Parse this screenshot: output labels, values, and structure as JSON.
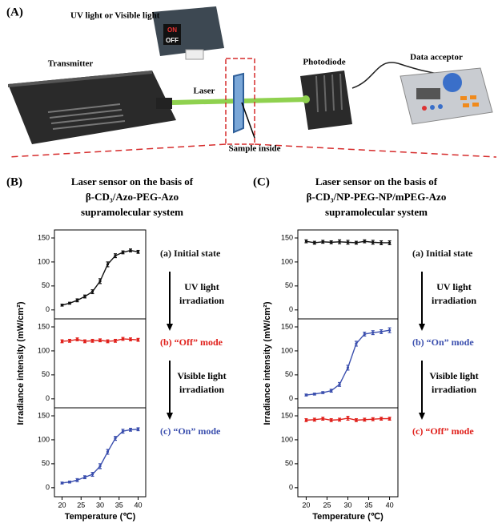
{
  "illustration": {
    "label": "(A)",
    "light_source": "UV light or Visible light",
    "on": "ON",
    "off": "OFF",
    "transmitter": "Transmitter",
    "laser": "Laser",
    "photodiode": "Photodiode",
    "data_acceptor": "Data acceptor",
    "sample": "Sample inside"
  },
  "chart_data": [
    {
      "type": "line",
      "panel": "(B)",
      "title": [
        "Laser sensor on the basis of",
        "β-CD₃/Azo-PEG-Azo",
        "supramolecular system"
      ],
      "xlabel": "Temperature (℃)",
      "ylabel": "Irradiance intensity (mW/cm²)",
      "x": [
        20,
        22,
        24,
        26,
        28,
        30,
        32,
        34,
        36,
        38,
        40
      ],
      "xlim": [
        18,
        42
      ],
      "xticks": [
        20,
        25,
        30,
        35,
        40
      ],
      "arrow_labels": [
        [
          "UV light",
          "irradiation"
        ],
        [
          "Visible light",
          "irradiation"
        ]
      ],
      "subplots": [
        {
          "ylim": [
            -12,
            160
          ],
          "yticks": [
            0,
            50,
            100,
            150
          ],
          "series": [
            {
              "name": "(a) Initial state",
              "color": "#111111",
              "values": [
                10,
                14,
                20,
                28,
                38,
                60,
                95,
                113,
                120,
                124,
                121
              ],
              "errors": [
                2,
                2,
                3,
                3,
                4,
                5,
                5,
                4,
                3,
                3,
                3
              ]
            }
          ]
        },
        {
          "ylim": [
            -12,
            160
          ],
          "yticks": [
            0,
            50,
            100,
            150
          ],
          "series": [
            {
              "name": "(b) “Off” mode",
              "color": "#e0201b",
              "values": [
                120,
                121,
                124,
                120,
                121,
                122,
                120,
                121,
                125,
                124,
                123
              ],
              "errors": [
                3,
                3,
                3,
                3,
                3,
                3,
                3,
                3,
                3,
                3,
                3
              ]
            }
          ]
        },
        {
          "ylim": [
            -12,
            160
          ],
          "yticks": [
            0,
            50,
            100,
            150
          ],
          "series": [
            {
              "name": "(c) “On” mode",
              "color": "#3b4fae",
              "values": [
                10,
                12,
                16,
                22,
                28,
                45,
                75,
                103,
                118,
                121,
                122
              ],
              "errors": [
                2,
                2,
                3,
                3,
                4,
                5,
                5,
                4,
                4,
                3,
                3
              ]
            }
          ]
        }
      ]
    },
    {
      "type": "line",
      "panel": "(C)",
      "title": [
        "Laser sensor on the basis of",
        "β-CD₃/NP-PEG-NP/mPEG-Azo",
        "supramolecular system"
      ],
      "xlabel": "Temperature (℃)",
      "ylabel": "Irradiance intensity (mW/cm²)",
      "x": [
        20,
        22,
        24,
        26,
        28,
        30,
        32,
        34,
        36,
        38,
        40
      ],
      "xlim": [
        18,
        42
      ],
      "xticks": [
        20,
        25,
        30,
        35,
        40
      ],
      "arrow_labels": [
        [
          "UV light",
          "irradiation"
        ],
        [
          "Visible light",
          "irradiation"
        ]
      ],
      "subplots": [
        {
          "ylim": [
            -12,
            160
          ],
          "yticks": [
            0,
            50,
            100,
            150
          ],
          "series": [
            {
              "name": "(a) Initial state",
              "color": "#111111",
              "values": [
                143,
                140,
                142,
                141,
                142,
                141,
                140,
                143,
                141,
                140,
                140
              ],
              "errors": [
                3,
                3,
                3,
                3,
                4,
                4,
                3,
                3,
                4,
                4,
                4
              ]
            }
          ]
        },
        {
          "ylim": [
            -12,
            160
          ],
          "yticks": [
            0,
            50,
            100,
            150
          ],
          "series": [
            {
              "name": "(b) “On” mode",
              "color": "#3b4fae",
              "values": [
                8,
                10,
                13,
                17,
                30,
                65,
                115,
                135,
                138,
                140,
                143
              ],
              "errors": [
                2,
                2,
                2,
                3,
                4,
                5,
                5,
                4,
                4,
                4,
                5
              ]
            }
          ]
        },
        {
          "ylim": [
            -12,
            160
          ],
          "yticks": [
            0,
            50,
            100,
            150
          ],
          "series": [
            {
              "name": "(c) “Off” mode",
              "color": "#e0201b",
              "values": [
                141,
                142,
                144,
                141,
                142,
                145,
                141,
                142,
                143,
                144,
                144
              ],
              "errors": [
                3,
                3,
                3,
                3,
                3,
                4,
                3,
                3,
                3,
                3,
                3
              ]
            }
          ]
        }
      ]
    }
  ]
}
